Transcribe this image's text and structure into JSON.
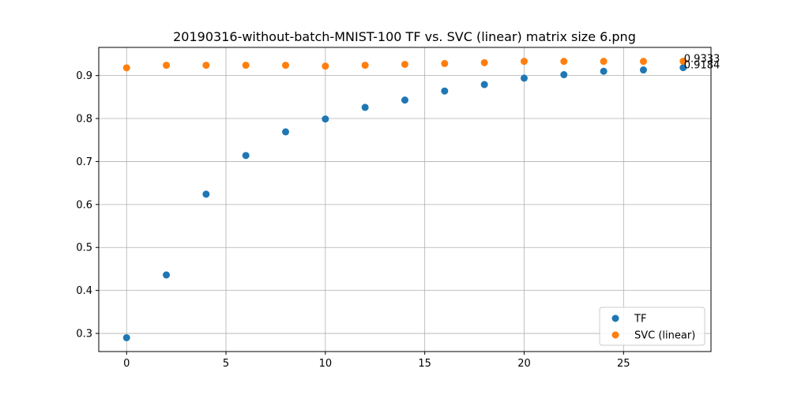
{
  "chart_data": {
    "type": "scatter",
    "title": "20190316-without-batch-MNIST-100 TF vs. SVC (linear) matrix size 6.png",
    "xlabel": "",
    "ylabel": "",
    "xlim": [
      -1.4,
      29.4
    ],
    "ylim": [
      0.2578,
      0.9655
    ],
    "grid": true,
    "legend_position": "lower-right",
    "x_ticks": [
      0,
      5,
      10,
      15,
      20,
      25
    ],
    "y_ticks": [
      0.3,
      0.4,
      0.5,
      0.6,
      0.7,
      0.8,
      0.9
    ],
    "series": [
      {
        "name": "TF",
        "color": "#1f77b4",
        "x": [
          0,
          2,
          4,
          6,
          8,
          10,
          12,
          14,
          16,
          18,
          20,
          22,
          24,
          26,
          28
        ],
        "y": [
          0.29,
          0.436,
          0.624,
          0.714,
          0.769,
          0.799,
          0.826,
          0.843,
          0.864,
          0.879,
          0.894,
          0.902,
          0.91,
          0.913,
          0.9184
        ]
      },
      {
        "name": "SVC (linear)",
        "color": "#ff7f0e",
        "x": [
          0,
          2,
          4,
          6,
          8,
          10,
          12,
          14,
          16,
          18,
          20,
          22,
          24,
          26,
          28
        ],
        "y": [
          0.918,
          0.924,
          0.924,
          0.924,
          0.924,
          0.922,
          0.924,
          0.926,
          0.928,
          0.93,
          0.933,
          0.933,
          0.933,
          0.933,
          0.9333
        ]
      }
    ],
    "annotations": [
      {
        "text": "0.9333",
        "x": 28,
        "y": 0.9333
      },
      {
        "text": "0.9184",
        "x": 28,
        "y": 0.9184
      }
    ]
  }
}
